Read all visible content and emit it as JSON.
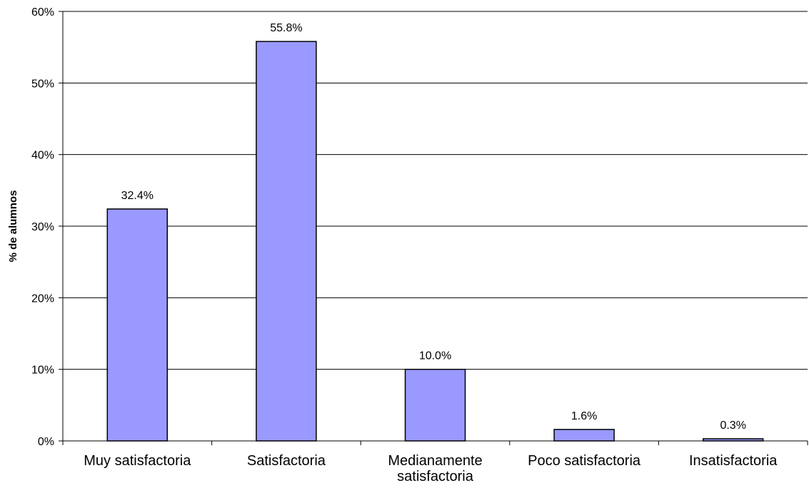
{
  "chart_data": {
    "type": "bar",
    "ylabel": "% de alumnos",
    "categories": [
      [
        "Muy satisfactoria"
      ],
      [
        "Satisfactoria"
      ],
      [
        "Medianamente",
        "satisfactoria"
      ],
      [
        "Poco satisfactoria"
      ],
      [
        "Insatisfactoria"
      ]
    ],
    "values": [
      32.4,
      55.8,
      10.0,
      1.6,
      0.3
    ],
    "data_labels": [
      "32.4%",
      "55.8%",
      "10.0%",
      "1.6%",
      "0.3%"
    ],
    "ylim": [
      0,
      60
    ],
    "yticks": [
      0,
      10,
      20,
      30,
      40,
      50,
      60
    ],
    "ytick_labels": [
      "0%",
      "10%",
      "20%",
      "30%",
      "40%",
      "50%",
      "60%"
    ],
    "grid": true,
    "bar_color": "#9999FF",
    "bar_edge_color": "#000000"
  }
}
